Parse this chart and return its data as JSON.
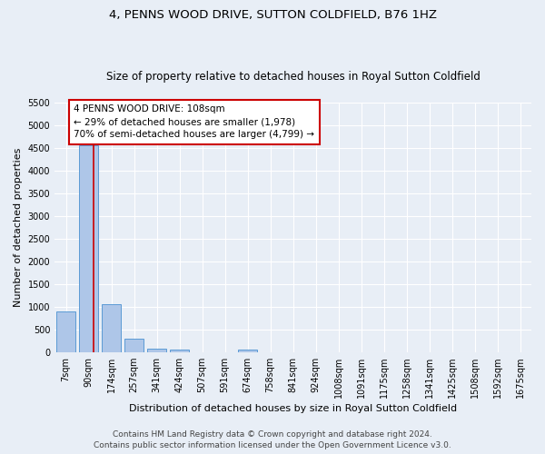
{
  "title": "4, PENNS WOOD DRIVE, SUTTON COLDFIELD, B76 1HZ",
  "subtitle": "Size of property relative to detached houses in Royal Sutton Coldfield",
  "xlabel": "Distribution of detached houses by size in Royal Sutton Coldfield",
  "ylabel": "Number of detached properties",
  "categories": [
    "7sqm",
    "90sqm",
    "174sqm",
    "257sqm",
    "341sqm",
    "424sqm",
    "507sqm",
    "591sqm",
    "674sqm",
    "758sqm",
    "841sqm",
    "924sqm",
    "1008sqm",
    "1091sqm",
    "1175sqm",
    "1258sqm",
    "1341sqm",
    "1425sqm",
    "1508sqm",
    "1592sqm",
    "1675sqm"
  ],
  "values": [
    900,
    4550,
    1050,
    290,
    75,
    60,
    0,
    0,
    55,
    0,
    0,
    0,
    0,
    0,
    0,
    0,
    0,
    0,
    0,
    0,
    0
  ],
  "bar_color": "#aec6e8",
  "bar_edge_color": "#5b9bd5",
  "background_color": "#e8eef6",
  "grid_color": "#ffffff",
  "ylim": [
    0,
    5500
  ],
  "yticks": [
    0,
    500,
    1000,
    1500,
    2000,
    2500,
    3000,
    3500,
    4000,
    4500,
    5000,
    5500
  ],
  "annotation_line1": "4 PENNS WOOD DRIVE: 108sqm",
  "annotation_line2": "← 29% of detached houses are smaller (1,978)",
  "annotation_line3": "70% of semi-detached houses are larger (4,799) →",
  "vline_color": "#cc0000",
  "annotation_box_color": "#ffffff",
  "annotation_box_edge_color": "#cc0000",
  "footer_line1": "Contains HM Land Registry data © Crown copyright and database right 2024.",
  "footer_line2": "Contains public sector information licensed under the Open Government Licence v3.0.",
  "title_fontsize": 9.5,
  "subtitle_fontsize": 8.5,
  "xlabel_fontsize": 8,
  "ylabel_fontsize": 8,
  "tick_fontsize": 7,
  "annotation_fontsize": 7.5,
  "footer_fontsize": 6.5
}
